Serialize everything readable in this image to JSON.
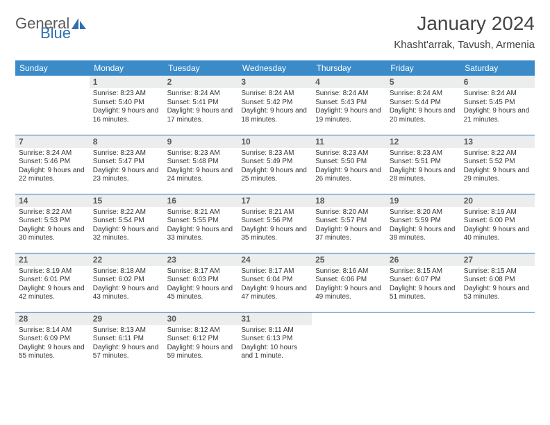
{
  "logo": {
    "general": "General",
    "blue": "Blue"
  },
  "title": "January 2024",
  "location": "Khasht'arrak, Tavush, Armenia",
  "theme": {
    "header_bg": "#3b8bc9",
    "rule": "#2f6fb4",
    "daynum_bg": "#eceeee"
  },
  "weekdays": [
    "Sunday",
    "Monday",
    "Tuesday",
    "Wednesday",
    "Thursday",
    "Friday",
    "Saturday"
  ],
  "weeks": [
    [
      {
        "n": "",
        "sr": "",
        "ss": "",
        "dl": ""
      },
      {
        "n": "1",
        "sr": "Sunrise: 8:23 AM",
        "ss": "Sunset: 5:40 PM",
        "dl": "Daylight: 9 hours and 16 minutes."
      },
      {
        "n": "2",
        "sr": "Sunrise: 8:24 AM",
        "ss": "Sunset: 5:41 PM",
        "dl": "Daylight: 9 hours and 17 minutes."
      },
      {
        "n": "3",
        "sr": "Sunrise: 8:24 AM",
        "ss": "Sunset: 5:42 PM",
        "dl": "Daylight: 9 hours and 18 minutes."
      },
      {
        "n": "4",
        "sr": "Sunrise: 8:24 AM",
        "ss": "Sunset: 5:43 PM",
        "dl": "Daylight: 9 hours and 19 minutes."
      },
      {
        "n": "5",
        "sr": "Sunrise: 8:24 AM",
        "ss": "Sunset: 5:44 PM",
        "dl": "Daylight: 9 hours and 20 minutes."
      },
      {
        "n": "6",
        "sr": "Sunrise: 8:24 AM",
        "ss": "Sunset: 5:45 PM",
        "dl": "Daylight: 9 hours and 21 minutes."
      }
    ],
    [
      {
        "n": "7",
        "sr": "Sunrise: 8:24 AM",
        "ss": "Sunset: 5:46 PM",
        "dl": "Daylight: 9 hours and 22 minutes."
      },
      {
        "n": "8",
        "sr": "Sunrise: 8:23 AM",
        "ss": "Sunset: 5:47 PM",
        "dl": "Daylight: 9 hours and 23 minutes."
      },
      {
        "n": "9",
        "sr": "Sunrise: 8:23 AM",
        "ss": "Sunset: 5:48 PM",
        "dl": "Daylight: 9 hours and 24 minutes."
      },
      {
        "n": "10",
        "sr": "Sunrise: 8:23 AM",
        "ss": "Sunset: 5:49 PM",
        "dl": "Daylight: 9 hours and 25 minutes."
      },
      {
        "n": "11",
        "sr": "Sunrise: 8:23 AM",
        "ss": "Sunset: 5:50 PM",
        "dl": "Daylight: 9 hours and 26 minutes."
      },
      {
        "n": "12",
        "sr": "Sunrise: 8:23 AM",
        "ss": "Sunset: 5:51 PM",
        "dl": "Daylight: 9 hours and 28 minutes."
      },
      {
        "n": "13",
        "sr": "Sunrise: 8:22 AM",
        "ss": "Sunset: 5:52 PM",
        "dl": "Daylight: 9 hours and 29 minutes."
      }
    ],
    [
      {
        "n": "14",
        "sr": "Sunrise: 8:22 AM",
        "ss": "Sunset: 5:53 PM",
        "dl": "Daylight: 9 hours and 30 minutes."
      },
      {
        "n": "15",
        "sr": "Sunrise: 8:22 AM",
        "ss": "Sunset: 5:54 PM",
        "dl": "Daylight: 9 hours and 32 minutes."
      },
      {
        "n": "16",
        "sr": "Sunrise: 8:21 AM",
        "ss": "Sunset: 5:55 PM",
        "dl": "Daylight: 9 hours and 33 minutes."
      },
      {
        "n": "17",
        "sr": "Sunrise: 8:21 AM",
        "ss": "Sunset: 5:56 PM",
        "dl": "Daylight: 9 hours and 35 minutes."
      },
      {
        "n": "18",
        "sr": "Sunrise: 8:20 AM",
        "ss": "Sunset: 5:57 PM",
        "dl": "Daylight: 9 hours and 37 minutes."
      },
      {
        "n": "19",
        "sr": "Sunrise: 8:20 AM",
        "ss": "Sunset: 5:59 PM",
        "dl": "Daylight: 9 hours and 38 minutes."
      },
      {
        "n": "20",
        "sr": "Sunrise: 8:19 AM",
        "ss": "Sunset: 6:00 PM",
        "dl": "Daylight: 9 hours and 40 minutes."
      }
    ],
    [
      {
        "n": "21",
        "sr": "Sunrise: 8:19 AM",
        "ss": "Sunset: 6:01 PM",
        "dl": "Daylight: 9 hours and 42 minutes."
      },
      {
        "n": "22",
        "sr": "Sunrise: 8:18 AM",
        "ss": "Sunset: 6:02 PM",
        "dl": "Daylight: 9 hours and 43 minutes."
      },
      {
        "n": "23",
        "sr": "Sunrise: 8:17 AM",
        "ss": "Sunset: 6:03 PM",
        "dl": "Daylight: 9 hours and 45 minutes."
      },
      {
        "n": "24",
        "sr": "Sunrise: 8:17 AM",
        "ss": "Sunset: 6:04 PM",
        "dl": "Daylight: 9 hours and 47 minutes."
      },
      {
        "n": "25",
        "sr": "Sunrise: 8:16 AM",
        "ss": "Sunset: 6:06 PM",
        "dl": "Daylight: 9 hours and 49 minutes."
      },
      {
        "n": "26",
        "sr": "Sunrise: 8:15 AM",
        "ss": "Sunset: 6:07 PM",
        "dl": "Daylight: 9 hours and 51 minutes."
      },
      {
        "n": "27",
        "sr": "Sunrise: 8:15 AM",
        "ss": "Sunset: 6:08 PM",
        "dl": "Daylight: 9 hours and 53 minutes."
      }
    ],
    [
      {
        "n": "28",
        "sr": "Sunrise: 8:14 AM",
        "ss": "Sunset: 6:09 PM",
        "dl": "Daylight: 9 hours and 55 minutes."
      },
      {
        "n": "29",
        "sr": "Sunrise: 8:13 AM",
        "ss": "Sunset: 6:11 PM",
        "dl": "Daylight: 9 hours and 57 minutes."
      },
      {
        "n": "30",
        "sr": "Sunrise: 8:12 AM",
        "ss": "Sunset: 6:12 PM",
        "dl": "Daylight: 9 hours and 59 minutes."
      },
      {
        "n": "31",
        "sr": "Sunrise: 8:11 AM",
        "ss": "Sunset: 6:13 PM",
        "dl": "Daylight: 10 hours and 1 minute."
      },
      {
        "n": "",
        "sr": "",
        "ss": "",
        "dl": ""
      },
      {
        "n": "",
        "sr": "",
        "ss": "",
        "dl": ""
      },
      {
        "n": "",
        "sr": "",
        "ss": "",
        "dl": ""
      }
    ]
  ]
}
